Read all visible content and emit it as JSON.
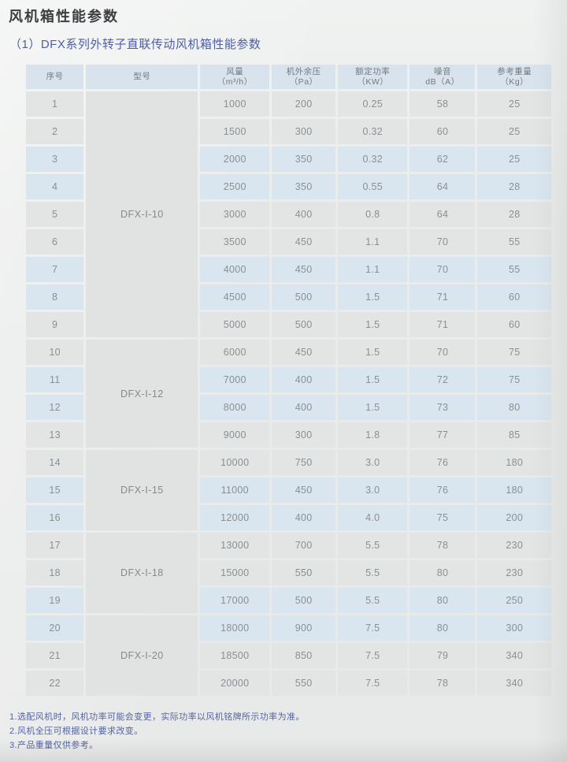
{
  "page": {
    "title": "风机箱性能参数",
    "subtitle": "（1）DFX系列外转子直联传动风机箱性能参数"
  },
  "table": {
    "headers": [
      {
        "line1": "序号",
        "line2": ""
      },
      {
        "line1": "型号",
        "line2": ""
      },
      {
        "line1": "风量",
        "line2": "（m³/h）"
      },
      {
        "line1": "机外余压",
        "line2": "（Pa）"
      },
      {
        "line1": "额定功率",
        "line2": "（KW）"
      },
      {
        "line1": "噪音",
        "line2": "dB（A）"
      },
      {
        "line1": "参考重量",
        "line2": "（Kg）"
      }
    ],
    "model_groups": [
      {
        "model": "DFX-I-10",
        "rows": 9
      },
      {
        "model": "DFX-I-12",
        "rows": 4
      },
      {
        "model": "DFX-I-15",
        "rows": 3
      },
      {
        "model": "DFX-I-18",
        "rows": 3
      },
      {
        "model": "DFX-I-20",
        "rows": 3
      }
    ],
    "rows": [
      {
        "no": "1",
        "airflow": "1000",
        "pressure": "200",
        "power": "0.25",
        "noise": "58",
        "weight": "25"
      },
      {
        "no": "2",
        "airflow": "1500",
        "pressure": "300",
        "power": "0.32",
        "noise": "60",
        "weight": "25"
      },
      {
        "no": "3",
        "airflow": "2000",
        "pressure": "350",
        "power": "0.32",
        "noise": "62",
        "weight": "25"
      },
      {
        "no": "4",
        "airflow": "2500",
        "pressure": "350",
        "power": "0.55",
        "noise": "64",
        "weight": "28"
      },
      {
        "no": "5",
        "airflow": "3000",
        "pressure": "400",
        "power": "0.8",
        "noise": "64",
        "weight": "28"
      },
      {
        "no": "6",
        "airflow": "3500",
        "pressure": "450",
        "power": "1.1",
        "noise": "70",
        "weight": "55"
      },
      {
        "no": "7",
        "airflow": "4000",
        "pressure": "450",
        "power": "1.1",
        "noise": "70",
        "weight": "55"
      },
      {
        "no": "8",
        "airflow": "4500",
        "pressure": "500",
        "power": "1.5",
        "noise": "71",
        "weight": "60"
      },
      {
        "no": "9",
        "airflow": "5000",
        "pressure": "500",
        "power": "1.5",
        "noise": "71",
        "weight": "60"
      },
      {
        "no": "10",
        "airflow": "6000",
        "pressure": "450",
        "power": "1.5",
        "noise": "70",
        "weight": "75"
      },
      {
        "no": "11",
        "airflow": "7000",
        "pressure": "400",
        "power": "1.5",
        "noise": "72",
        "weight": "75"
      },
      {
        "no": "12",
        "airflow": "8000",
        "pressure": "400",
        "power": "1.5",
        "noise": "73",
        "weight": "80"
      },
      {
        "no": "13",
        "airflow": "9000",
        "pressure": "300",
        "power": "1.8",
        "noise": "77",
        "weight": "85"
      },
      {
        "no": "14",
        "airflow": "10000",
        "pressure": "750",
        "power": "3.0",
        "noise": "76",
        "weight": "180"
      },
      {
        "no": "15",
        "airflow": "11000",
        "pressure": "450",
        "power": "3.0",
        "noise": "76",
        "weight": "180"
      },
      {
        "no": "16",
        "airflow": "12000",
        "pressure": "400",
        "power": "4.0",
        "noise": "75",
        "weight": "200"
      },
      {
        "no": "17",
        "airflow": "13000",
        "pressure": "700",
        "power": "5.5",
        "noise": "78",
        "weight": "230"
      },
      {
        "no": "18",
        "airflow": "15000",
        "pressure": "550",
        "power": "5.5",
        "noise": "80",
        "weight": "230"
      },
      {
        "no": "19",
        "airflow": "17000",
        "pressure": "500",
        "power": "5.5",
        "noise": "80",
        "weight": "250"
      },
      {
        "no": "20",
        "airflow": "18000",
        "pressure": "900",
        "power": "7.5",
        "noise": "80",
        "weight": "300"
      },
      {
        "no": "21",
        "airflow": "18500",
        "pressure": "850",
        "power": "7.5",
        "noise": "79",
        "weight": "340"
      },
      {
        "no": "22",
        "airflow": "20000",
        "pressure": "550",
        "power": "7.5",
        "noise": "78",
        "weight": "340"
      }
    ]
  },
  "notes": [
    "1.选配风机时，风机功率可能会变更，实际功率以风机铭牌所示功率为准。",
    "2.风机全压可根据设计要求改变。",
    "3.产品重量仅供参考。"
  ],
  "colors": {
    "title_text": "#3c3e40",
    "accent_blue_text": "#4e5ea7",
    "header_bg": "#d8e3ed",
    "row_blue_bg": "#d9e6ef",
    "row_gray_bg": "#e3e5e4",
    "model_col_bg": "#e0e3e2",
    "paper_bg": "#e9ebea",
    "cell_text": "#8a8f93"
  }
}
